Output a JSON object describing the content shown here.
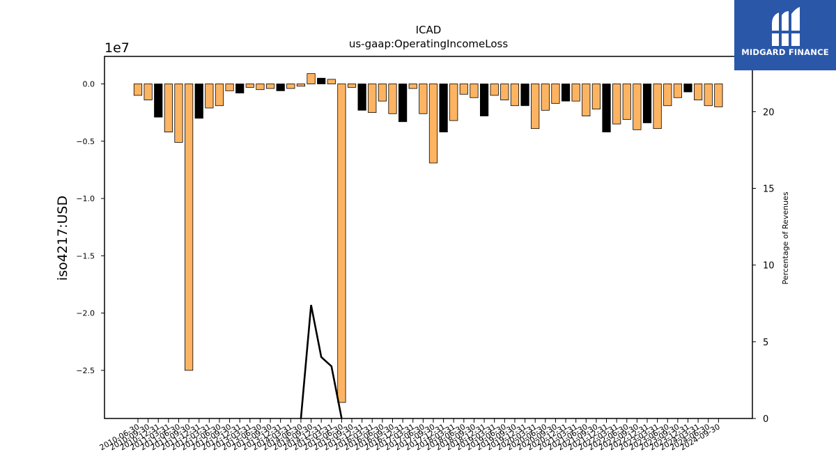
{
  "logo": {
    "text": "MIDGARD FINANCE"
  },
  "chart_data": {
    "type": "bar",
    "title": "ICAD",
    "subtitle": "us-gaap:OperatingIncomeLoss",
    "ylabel": "iso4217:USD",
    "y_offset_label": "1e7",
    "y2label": "Percentage of Revenues",
    "ylim": [
      -29200000,
      2400000
    ],
    "y2lim": [
      0,
      23.6
    ],
    "yticks": [
      0.0,
      -0.5,
      -1.0,
      -1.5,
      -2.0,
      -2.5
    ],
    "ytick_labels": [
      "0.0",
      "−0.5",
      "−1.0",
      "−1.5",
      "−2.0",
      "−2.5"
    ],
    "y2ticks": [
      0,
      5,
      10,
      15,
      20
    ],
    "y2tick_labels": [
      "0",
      "5",
      "10",
      "15",
      "20"
    ],
    "colors": {
      "orange": "#fdb462",
      "black": "#000000",
      "edge": "#000000",
      "line": "#000000"
    },
    "categories": [
      "2010-06-30",
      "2010-09-30",
      "2010-12-31",
      "2011-03-31",
      "2011-06-30",
      "2011-09-30",
      "2011-12-31",
      "2012-03-31",
      "2012-06-30",
      "2012-09-30",
      "2012-12-31",
      "2013-03-31",
      "2013-06-30",
      "2013-09-30",
      "2013-12-31",
      "2014-03-31",
      "2014-06-30",
      "2014-09-30",
      "2014-12-31",
      "2015-03-31",
      "2015-06-30",
      "2015-09-30",
      "2015-12-31",
      "2016-03-31",
      "2016-06-30",
      "2016-09-30",
      "2016-12-31",
      "2017-03-31",
      "2017-06-30",
      "2017-09-30",
      "2017-12-31",
      "2018-03-31",
      "2018-06-30",
      "2018-09-30",
      "2018-12-31",
      "2019-03-31",
      "2019-06-30",
      "2019-09-30",
      "2019-12-31",
      "2020-03-31",
      "2020-06-30",
      "2020-09-30",
      "2020-12-31",
      "2021-03-31",
      "2021-06-30",
      "2021-09-30",
      "2021-12-31",
      "2022-03-31",
      "2022-06-30",
      "2022-09-30",
      "2022-12-31",
      "2023-03-31",
      "2023-06-30",
      "2023-09-30",
      "2023-12-31",
      "2024-03-31",
      "2024-06-30",
      "2024-09-30"
    ],
    "xtick_labels": [
      "2010-06-30",
      "2010-09-30",
      "2010-12-31",
      "2011-03-31",
      "2011-06-30",
      "2011-09-30",
      "2011-12-31",
      "2012-03-31",
      "2012-06-30",
      "2012-09-30",
      "2012-12-31",
      "2013-03-31",
      "2013-06-30",
      "2013-09-30",
      "2013-12-31",
      "2014-03-31",
      "2014-06-30",
      "2014-09-30",
      "2014-12-31",
      "2015-03-31",
      "2015-06-30",
      "2015-09-30",
      "2015-12-31",
      "2016-03-31",
      "2016-06-30",
      "2016-09-30",
      "2016-12-31",
      "2017-03-31",
      "2017-06-30",
      "2017-09-30",
      "2017-12-31",
      "2018-03-31",
      "2018-06-30",
      "2018-09-30",
      "2018-12-31",
      "2019-03-31",
      "2019-06-30",
      "2019-09-30",
      "2019-12-31",
      "2020-03-31",
      "2020-06-30",
      "2020-09-30",
      "2020-12-31",
      "2021-03-31",
      "2021-06-30",
      "2021-09-30",
      "2021-12-31",
      "2022-03-31",
      "2022-06-30",
      "2022-09-30",
      "2022-12-31",
      "2023-03-31",
      "2023-06-30",
      "2023-09-30",
      "2023-12-31",
      "2024-03-31",
      "2024-06-30",
      "2024-09-30"
    ],
    "values": [
      -1000000,
      -1400000,
      -2900000,
      -4200000,
      -5100000,
      -25000000,
      -3000000,
      -2100000,
      -1900000,
      -600000,
      -800000,
      -300000,
      -500000,
      -400000,
      -600000,
      -400000,
      -200000,
      900000,
      500000,
      400000,
      -27800000,
      -300000,
      -2300000,
      -2500000,
      -1500000,
      -2600000,
      -3300000,
      -400000,
      -2600000,
      -6900000,
      -4200000,
      -3200000,
      -900000,
      -1200000,
      -2800000,
      -1000000,
      -1400000,
      -1900000,
      -1900000,
      -3900000,
      -2300000,
      -1700000,
      -1500000,
      -1500000,
      -2800000,
      -2200000,
      -4200000,
      -3500000,
      -3100000,
      -4000000,
      -3400000,
      -3900000,
      -1900000,
      -1200000,
      -700000,
      -1400000,
      -1900000,
      -2000000
    ],
    "bar_colors": [
      "orange",
      "orange",
      "black",
      "orange",
      "orange",
      "orange",
      "black",
      "orange",
      "orange",
      "orange",
      "black",
      "orange",
      "orange",
      "orange",
      "black",
      "orange",
      "orange",
      "orange",
      "black",
      "orange",
      "orange",
      "orange",
      "black",
      "orange",
      "orange",
      "orange",
      "black",
      "orange",
      "orange",
      "orange",
      "black",
      "orange",
      "orange",
      "orange",
      "black",
      "orange",
      "orange",
      "orange",
      "black",
      "orange",
      "orange",
      "orange",
      "black",
      "orange",
      "orange",
      "orange",
      "black",
      "orange",
      "orange",
      "orange",
      "black",
      "orange",
      "orange",
      "orange",
      "black",
      "orange",
      "orange",
      "orange"
    ],
    "line_series": {
      "name": "Percentage of Revenues",
      "axis": "right",
      "start_index": 16,
      "values": [
        0,
        7.4,
        4.0,
        3.4,
        0
      ]
    }
  }
}
